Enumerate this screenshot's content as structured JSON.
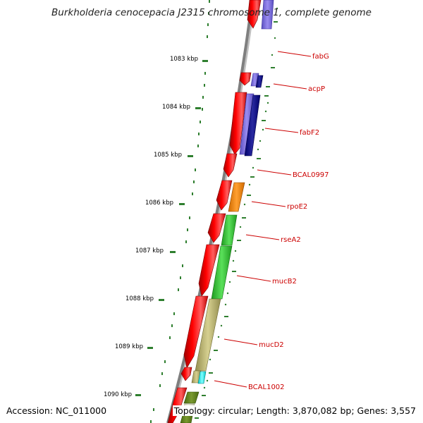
{
  "title": "Burkholderia cenocepacia J2315 chromosome 1, complete genome",
  "footer": {
    "accession": "Accession: NC_011000",
    "topology": "Topology: circular; Length: 3,870,082 bp; Genes: 3,557"
  },
  "colors": {
    "backbone": "#7f7f7f",
    "ruler": "#2f7f2f",
    "forward_cds": "#ff0000",
    "label": "#cc0000"
  },
  "ruler": {
    "ticks": [
      "1083 kbp",
      "1084 kbp",
      "1085 kbp",
      "1086 kbp",
      "1087 kbp",
      "1088 kbp",
      "1089 kbp",
      "1090 kbp"
    ]
  },
  "genes": [
    {
      "label": "fabG",
      "color": "#7a6be0"
    },
    {
      "label": "acpP",
      "color": "#1a1a8c"
    },
    {
      "label": "fabF2",
      "color": "#1a1a8c"
    },
    {
      "label": "BCAL0997",
      "color": ""
    },
    {
      "label": "rpoE2",
      "color": "#ff8c00"
    },
    {
      "label": "rseA2",
      "color": "#33cc33"
    },
    {
      "label": "mucB2",
      "color": "#33cc33"
    },
    {
      "label": "mucD2",
      "color": "#bdb76b"
    },
    {
      "label": "BCAL1002",
      "color": "#00ffff"
    }
  ]
}
